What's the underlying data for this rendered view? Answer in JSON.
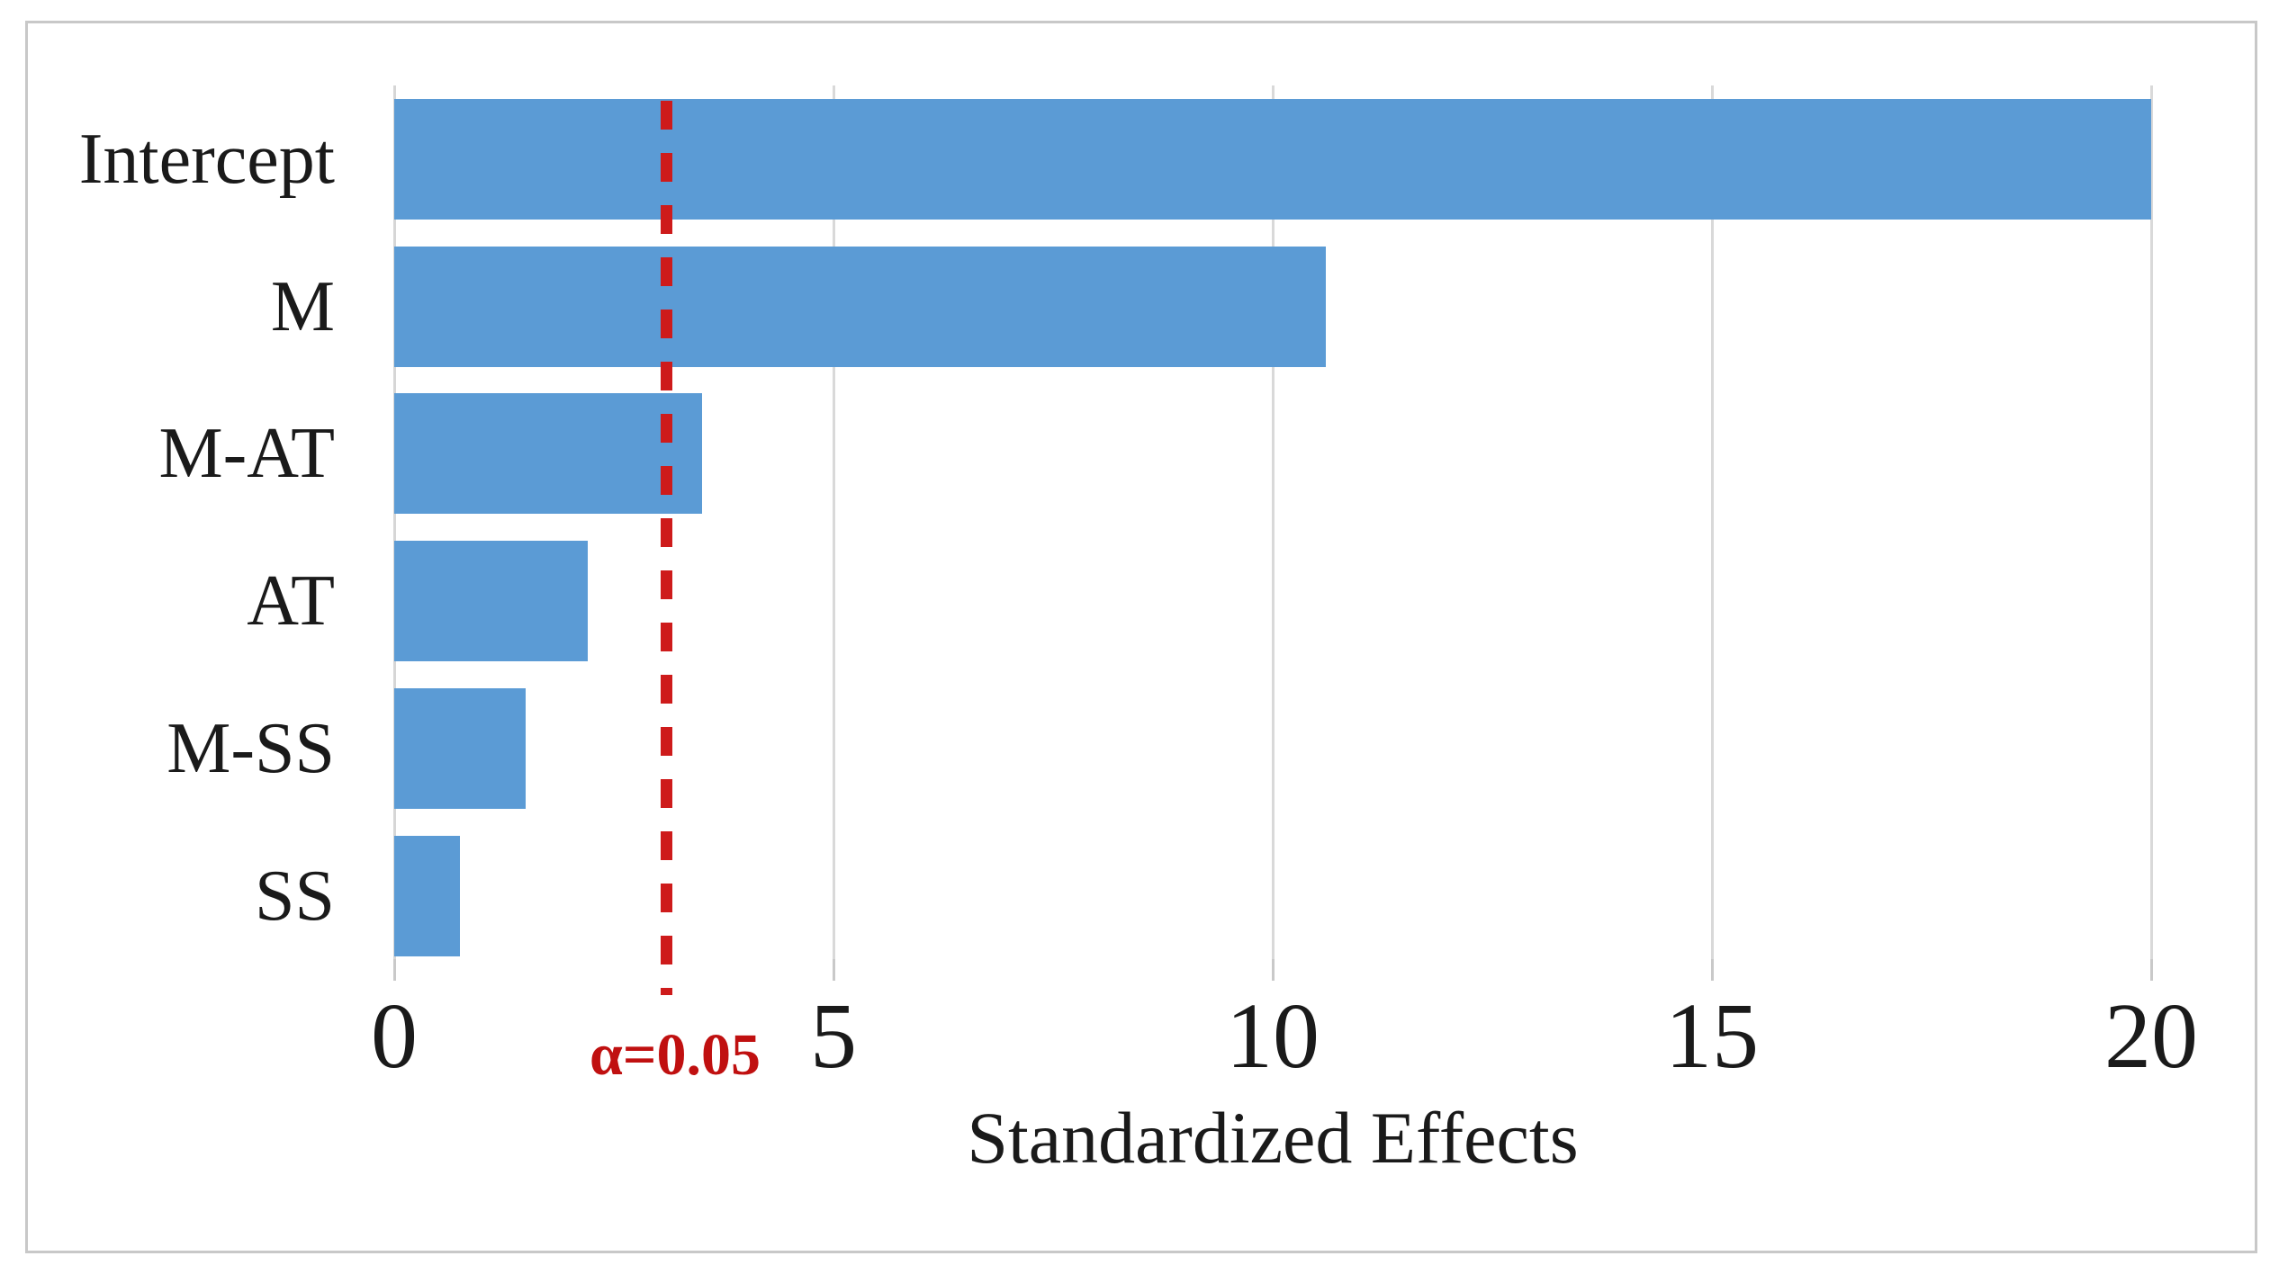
{
  "chart_data": {
    "type": "bar",
    "orientation": "horizontal",
    "title": "",
    "categories": [
      "Intercept",
      "M",
      "M-AT",
      "AT",
      "M-SS",
      "SS"
    ],
    "values": [
      20.0,
      10.6,
      3.5,
      2.2,
      1.5,
      0.75
    ],
    "xlabel": "Standardized Effects",
    "ylabel": "",
    "x_ticks": [
      0,
      5,
      10,
      15,
      20
    ],
    "xlim": [
      0,
      20
    ],
    "grid": true,
    "legend": false,
    "reference_line": {
      "value": 3.1,
      "label": "α=0.05",
      "style": "dashed"
    }
  },
  "colors": {
    "bar": "#5b9bd5",
    "reference_line": "#ce1b1b",
    "reference_text": "#c01010",
    "gridline": "#d9d9d9",
    "axis": "#d6d6d6",
    "tick": "#c9c9c9",
    "text": "#1a1a1a",
    "frame_border": "#c8c8c8",
    "background": "#ffffff"
  }
}
